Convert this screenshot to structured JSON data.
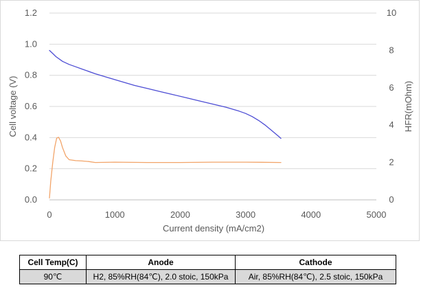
{
  "chart_data": {
    "type": "line",
    "xlabel": "Current density (mA/cm2)",
    "ylabel": "Cell voltage (V)",
    "y2label": "HFR(mOhm)",
    "xlim": [
      0,
      5000
    ],
    "ylim": [
      0,
      1.2
    ],
    "y2lim": [
      0,
      10
    ],
    "x_ticks": [
      "0",
      "1000",
      "2000",
      "3000",
      "4000",
      "5000"
    ],
    "y_ticks": [
      "0.0",
      "0.2",
      "0.4",
      "0.6",
      "0.8",
      "1.0",
      "1.2"
    ],
    "y2_ticks": [
      "0",
      "2",
      "4",
      "6",
      "8",
      "10"
    ],
    "grid": "horizontal",
    "legend": "none",
    "series": [
      {
        "axis": "left",
        "color": "#4c4cd4",
        "x": [
          0,
          50,
          100,
          200,
          300,
          400,
          500,
          700,
          900,
          1100,
          1300,
          1500,
          1700,
          1900,
          2100,
          2300,
          2500,
          2700,
          2900,
          3000,
          3100,
          3200,
          3300,
          3400,
          3500,
          3540
        ],
        "y": [
          0.96,
          0.94,
          0.92,
          0.89,
          0.87,
          0.855,
          0.84,
          0.81,
          0.785,
          0.76,
          0.735,
          0.715,
          0.695,
          0.675,
          0.655,
          0.635,
          0.615,
          0.595,
          0.57,
          0.555,
          0.535,
          0.51,
          0.48,
          0.445,
          0.41,
          0.395
        ]
      },
      {
        "axis": "right",
        "color": "#f2a469",
        "x": [
          0,
          20,
          50,
          80,
          110,
          140,
          170,
          200,
          250,
          300,
          400,
          500,
          600,
          700,
          1000,
          1500,
          2000,
          2500,
          3000,
          3540
        ],
        "y": [
          0.1,
          1.0,
          2.0,
          2.8,
          3.3,
          3.35,
          3.15,
          2.8,
          2.35,
          2.15,
          2.1,
          2.08,
          2.05,
          2.0,
          2.02,
          2.0,
          2.0,
          2.02,
          2.02,
          2.0
        ]
      }
    ]
  },
  "table": {
    "headers": [
      "Cell Temp(C)",
      "Anode",
      "Cathode"
    ],
    "row": [
      "90℃",
      "H2, 85%RH(84℃), 2.0 stoic,  150kPa",
      "Air, 85%RH(84℃), 2.5 stoic,  150kPa"
    ]
  }
}
